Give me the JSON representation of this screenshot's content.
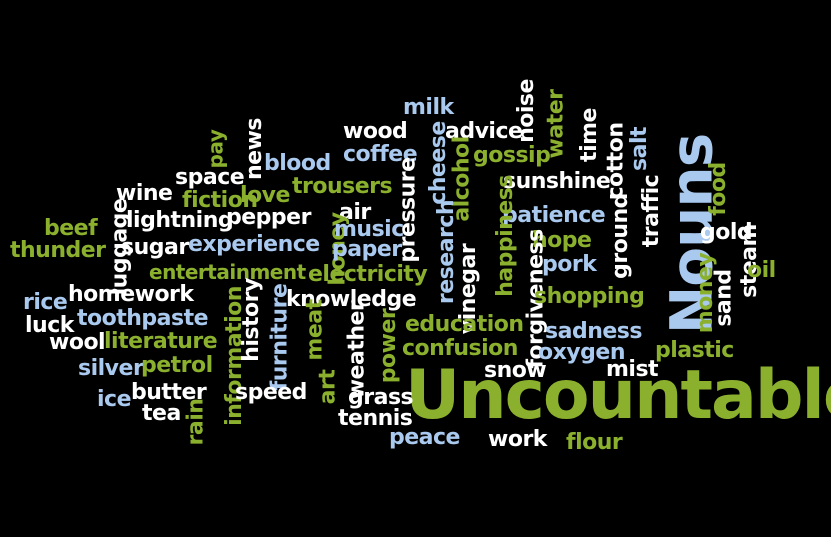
{
  "title": {
    "main": "Uncountable",
    "sub": "Nouns"
  },
  "colors": {
    "background": "#000000",
    "green": "#8bb02e",
    "blue": "#a9c9ee",
    "white": "#ffffff"
  },
  "words": {
    "milk": "milk",
    "noise": "noise",
    "water": "water",
    "time": "time",
    "news": "news",
    "pay": "pay",
    "wood": "wood",
    "advice": "advice",
    "coffee": "coffee",
    "cheese": "cheese",
    "gossip": "gossip",
    "cotton": "cotton",
    "salt": "salt",
    "blood": "blood",
    "space": "space",
    "alcohol": "alcohol",
    "wine": "wine",
    "love": "love",
    "fiction": "fiction",
    "trousers": "trousers",
    "sunshine": "sunshine",
    "ground": "ground",
    "traffic": "traffic",
    "food": "food",
    "pressure": "pressure",
    "air": "air",
    "beef": "beef",
    "lightning": "lightning",
    "pepper": "pepper",
    "luggage": "luggage",
    "patience": "patience",
    "gold": "gold",
    "thunder": "thunder",
    "sugar": "sugar",
    "experience": "experience",
    "honey": "honey",
    "music": "music",
    "paper": "paper",
    "research": "research",
    "happiness": "happiness",
    "hope": "hope",
    "steam": "steam",
    "sand": "sand",
    "entertainment": "entertainment",
    "electricity": "electricity",
    "vinegar": "vinegar",
    "pork": "pork",
    "money": "money",
    "oil": "oil",
    "rice": "rice",
    "homework": "homework",
    "knowledge": "knowledge",
    "forgiveness": "forgiveness",
    "shopping": "shopping",
    "luck": "luck",
    "toothpaste": "toothpaste",
    "history": "history",
    "furniture": "furniture",
    "information": "information",
    "education": "education",
    "sadness": "sadness",
    "plastic": "plastic",
    "wool": "wool",
    "literature": "literature",
    "meat": "meat",
    "weather": "weather",
    "power": "power",
    "confusion": "confusion",
    "oxygen": "oxygen",
    "silver": "silver",
    "petrol": "petrol",
    "snow": "snow",
    "mist": "mist",
    "butter": "butter",
    "art": "art",
    "ice": "ice",
    "speed": "speed",
    "grass": "grass",
    "tea": "tea",
    "rain": "rain",
    "tennis": "tennis",
    "peace": "peace",
    "work": "work",
    "flour": "flour"
  }
}
